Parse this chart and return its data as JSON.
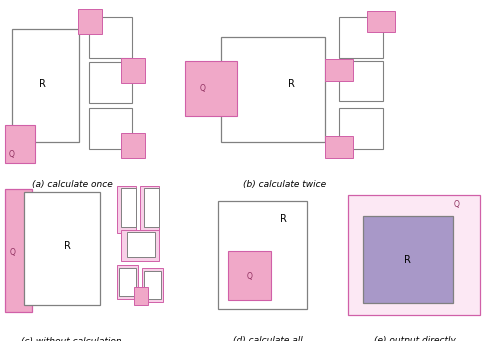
{
  "fig_width": 5.0,
  "fig_height": 3.41,
  "dpi": 100,
  "bg": "#ffffff",
  "colors": {
    "pink": "#f0a8c8",
    "pink_light": "#f8d0e8",
    "pink_lighter": "#fce8f4",
    "purple": "#a898c8",
    "eg": "#808080",
    "ep": "#d060a8",
    "tp": "#903060"
  },
  "labels": {
    "a": "(a) calculate once",
    "b": "(b) calculate twice",
    "c": "(c) without calculation",
    "d": "(d) calculate all",
    "e": "(e) output directly"
  }
}
